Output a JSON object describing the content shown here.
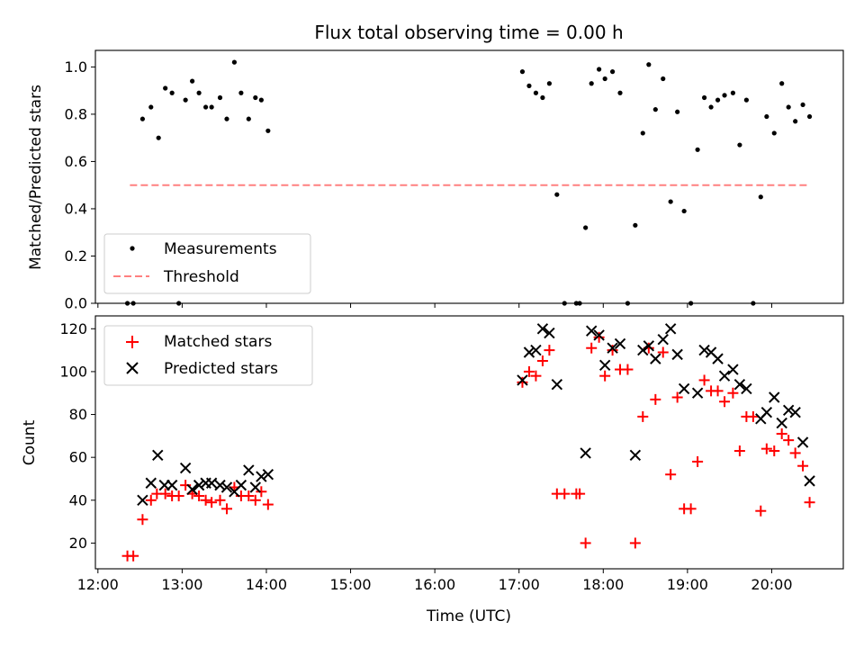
{
  "chart_data": [
    {
      "type": "scatter",
      "title": "Flux total observing time = 0.00 h",
      "xlabel": "",
      "ylabel": "Matched/Predicted stars",
      "xlim": [
        11.97,
        20.85
      ],
      "ylim": [
        0,
        1.07
      ],
      "yticks": [
        0.0,
        0.2,
        0.4,
        0.6,
        0.8,
        1.0
      ],
      "ytick_labels": [
        "0.0",
        "0.2",
        "0.4",
        "0.6",
        "0.8",
        "1.0"
      ],
      "xticks": [
        12,
        13,
        14,
        15,
        16,
        17,
        18,
        19,
        20
      ],
      "show_xtick_labels": false,
      "grid": false,
      "legend_position": "lower-left",
      "series": [
        {
          "name": "Measurements",
          "marker": "dot",
          "color": "#000000",
          "x": [
            12.35,
            12.42,
            12.53,
            12.63,
            12.72,
            12.8,
            12.88,
            12.96,
            13.04,
            13.12,
            13.2,
            13.28,
            13.35,
            13.45,
            13.53,
            13.62,
            13.7,
            13.79,
            13.87,
            13.94,
            14.02,
            17.04,
            17.12,
            17.2,
            17.28,
            17.36,
            17.45,
            17.54,
            17.68,
            17.72,
            17.79,
            17.86,
            17.95,
            18.02,
            18.11,
            18.2,
            18.29,
            18.38,
            18.47,
            18.54,
            18.62,
            18.71,
            18.8,
            18.88,
            18.96,
            19.04,
            19.12,
            19.2,
            19.28,
            19.36,
            19.44,
            19.54,
            19.62,
            19.7,
            19.78,
            19.87,
            19.94,
            20.03,
            20.12,
            20.2,
            20.28,
            20.37,
            20.45
          ],
          "y": [
            0.0,
            0.0,
            0.78,
            0.83,
            0.7,
            0.91,
            0.89,
            0.0,
            0.86,
            0.94,
            0.89,
            0.83,
            0.83,
            0.87,
            0.78,
            1.02,
            0.89,
            0.78,
            0.87,
            0.86,
            0.73,
            0.98,
            0.92,
            0.89,
            0.87,
            0.93,
            0.46,
            0.0,
            0.0,
            0.0,
            0.32,
            0.93,
            0.99,
            0.95,
            0.98,
            0.89,
            0.0,
            0.33,
            0.72,
            1.01,
            0.82,
            0.95,
            0.43,
            0.81,
            0.39,
            0.0,
            0.65,
            0.87,
            0.83,
            0.86,
            0.88,
            0.89,
            0.67,
            0.86,
            0.0,
            0.45,
            0.79,
            0.72,
            0.93,
            0.83,
            0.77,
            0.84,
            0.79
          ]
        },
        {
          "name": "Threshold",
          "marker": "dashed-line",
          "color": "#ff8080",
          "x": [
            12.38,
            20.45
          ],
          "y": [
            0.5,
            0.5
          ]
        }
      ]
    },
    {
      "type": "scatter",
      "title": "",
      "xlabel": "Time (UTC)",
      "ylabel": "Count",
      "xlim": [
        11.97,
        20.85
      ],
      "ylim": [
        8,
        126
      ],
      "yticks": [
        20,
        40,
        60,
        80,
        100,
        120
      ],
      "ytick_labels": [
        "20",
        "40",
        "60",
        "80",
        "100",
        "120"
      ],
      "xticks": [
        12,
        13,
        14,
        15,
        16,
        17,
        18,
        19,
        20
      ],
      "xtick_labels": [
        "12:00",
        "13:00",
        "14:00",
        "15:00",
        "16:00",
        "17:00",
        "18:00",
        "19:00",
        "20:00"
      ],
      "show_xtick_labels": true,
      "grid": false,
      "legend_position": "top-left",
      "series": [
        {
          "name": "Matched stars",
          "marker": "plus",
          "color": "#ff0000",
          "x": [
            12.35,
            12.42,
            12.53,
            12.63,
            12.7,
            12.8,
            12.88,
            12.96,
            13.04,
            13.12,
            13.2,
            13.28,
            13.35,
            13.45,
            13.53,
            13.62,
            13.7,
            13.79,
            13.87,
            13.94,
            14.02,
            17.04,
            17.12,
            17.2,
            17.28,
            17.36,
            17.45,
            17.54,
            17.68,
            17.72,
            17.79,
            17.86,
            17.95,
            18.02,
            18.11,
            18.2,
            18.29,
            18.38,
            18.47,
            18.54,
            18.62,
            18.71,
            18.8,
            18.88,
            18.96,
            19.04,
            19.12,
            19.2,
            19.28,
            19.36,
            19.44,
            19.54,
            19.62,
            19.7,
            19.78,
            19.87,
            19.94,
            20.03,
            20.12,
            20.2,
            20.28,
            20.37,
            20.45
          ],
          "y": [
            14,
            14,
            31,
            40,
            43,
            43,
            42,
            42,
            47,
            43,
            42,
            40,
            39,
            40,
            36,
            46,
            42,
            42,
            40,
            44,
            38,
            95,
            100,
            98,
            105,
            110,
            43,
            43,
            43,
            43,
            20,
            111,
            116,
            98,
            110,
            101,
            101,
            20,
            79,
            111,
            87,
            109,
            52,
            88,
            36,
            36,
            58,
            96,
            91,
            91,
            86,
            90,
            63,
            79,
            79,
            35,
            64,
            63,
            71,
            68,
            62,
            56,
            39
          ]
        },
        {
          "name": "Predicted stars",
          "marker": "x",
          "color": "#000000",
          "x": [
            12.53,
            12.63,
            12.71,
            12.79,
            12.88,
            13.04,
            13.12,
            13.2,
            13.28,
            13.35,
            13.45,
            13.53,
            13.62,
            13.7,
            13.79,
            13.87,
            13.94,
            14.02,
            17.04,
            17.12,
            17.2,
            17.28,
            17.36,
            17.45,
            17.79,
            17.86,
            17.95,
            18.02,
            18.11,
            18.2,
            18.38,
            18.47,
            18.54,
            18.62,
            18.71,
            18.8,
            18.88,
            18.96,
            19.12,
            19.2,
            19.28,
            19.36,
            19.44,
            19.54,
            19.62,
            19.7,
            19.87,
            19.94,
            20.03,
            20.12,
            20.2,
            20.28,
            20.37,
            20.45
          ],
          "y": [
            40,
            48,
            61,
            47,
            47,
            55,
            45,
            47,
            48,
            48,
            47,
            46,
            44,
            47,
            54,
            46,
            51,
            52,
            96,
            109,
            110,
            120,
            118,
            94,
            62,
            119,
            117,
            103,
            111,
            113,
            61,
            110,
            112,
            106,
            115,
            120,
            108,
            92,
            90,
            110,
            109,
            106,
            98,
            101,
            94,
            92,
            78,
            81,
            88,
            76,
            82,
            81,
            67,
            49
          ]
        }
      ]
    }
  ]
}
